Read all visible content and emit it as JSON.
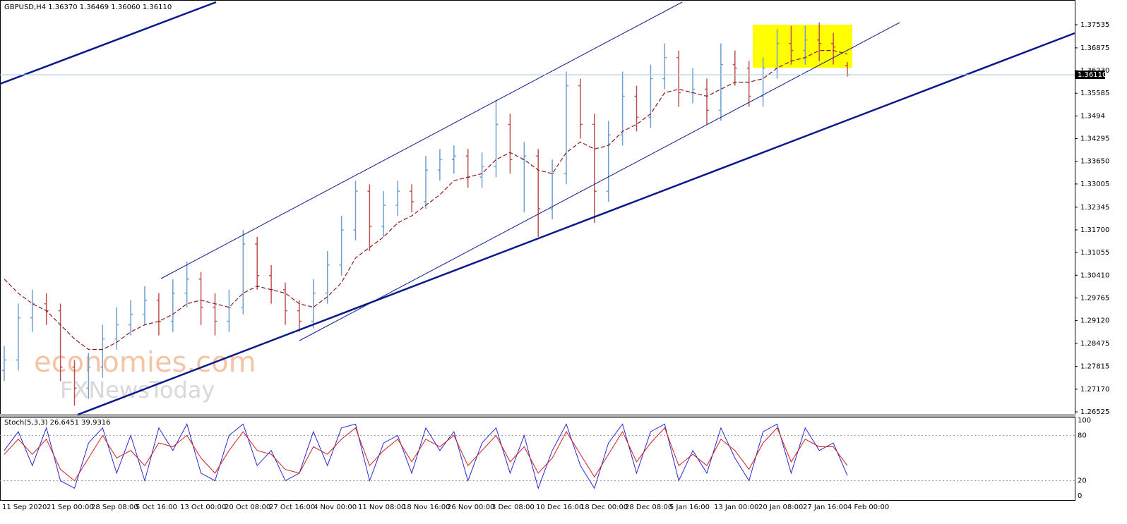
{
  "chart_data": {
    "type": "ohlc",
    "symbol_label": "GBPUSD,H4  1.36370 1.36469 1.36060 1.36110",
    "up_color": "#6f9fcf",
    "down_color": "#c05050",
    "ohlc": {
      "open": [
        1.277,
        1.28,
        1.292,
        1.296,
        1.294,
        1.278,
        1.272,
        1.278,
        1.286,
        1.29,
        1.293,
        1.297,
        1.291,
        1.299,
        1.303,
        1.295,
        1.291,
        1.295,
        1.313,
        1.304,
        1.3,
        1.294,
        1.291,
        1.299,
        1.307,
        1.317,
        1.328,
        1.318,
        1.324,
        1.328,
        1.325,
        1.334,
        1.337,
        1.338,
        1.332,
        1.335,
        1.347,
        1.337,
        1.338,
        1.323,
        1.333,
        1.358,
        1.347,
        1.328,
        1.344,
        1.355,
        1.349,
        1.36,
        1.366,
        1.356,
        1.357,
        1.351,
        1.364,
        1.363,
        1.355,
        1.363,
        1.37,
        1.368,
        1.371,
        1.37,
        1.3637
      ],
      "high": [
        1.284,
        1.296,
        1.3,
        1.299,
        1.296,
        1.28,
        1.282,
        1.29,
        1.295,
        1.297,
        1.301,
        1.299,
        1.303,
        1.308,
        1.305,
        1.299,
        1.3,
        1.317,
        1.315,
        1.307,
        1.302,
        1.297,
        1.303,
        1.311,
        1.321,
        1.331,
        1.33,
        1.328,
        1.331,
        1.33,
        1.338,
        1.34,
        1.341,
        1.34,
        1.339,
        1.354,
        1.35,
        1.342,
        1.34,
        1.337,
        1.362,
        1.36,
        1.35,
        1.348,
        1.362,
        1.358,
        1.364,
        1.37,
        1.368,
        1.363,
        1.36,
        1.37,
        1.368,
        1.365,
        1.366,
        1.374,
        1.375,
        1.375,
        1.376,
        1.373,
        1.36469
      ],
      "low": [
        1.274,
        1.277,
        1.288,
        1.29,
        1.274,
        1.267,
        1.269,
        1.275,
        1.283,
        1.287,
        1.29,
        1.287,
        1.288,
        1.295,
        1.29,
        1.287,
        1.288,
        1.293,
        1.3,
        1.296,
        1.29,
        1.288,
        1.289,
        1.296,
        1.304,
        1.314,
        1.311,
        1.315,
        1.321,
        1.322,
        1.323,
        1.331,
        1.333,
        1.329,
        1.329,
        1.332,
        1.333,
        1.322,
        1.315,
        1.32,
        1.33,
        1.343,
        1.319,
        1.325,
        1.341,
        1.345,
        1.346,
        1.357,
        1.352,
        1.353,
        1.347,
        1.348,
        1.358,
        1.352,
        1.352,
        1.36,
        1.364,
        1.364,
        1.365,
        1.364,
        1.3606
      ],
      "close": [
        1.28,
        1.292,
        1.296,
        1.294,
        1.278,
        1.272,
        1.278,
        1.286,
        1.29,
        1.293,
        1.297,
        1.291,
        1.299,
        1.303,
        1.295,
        1.291,
        1.295,
        1.313,
        1.304,
        1.3,
        1.294,
        1.291,
        1.299,
        1.307,
        1.317,
        1.328,
        1.318,
        1.324,
        1.328,
        1.325,
        1.334,
        1.337,
        1.338,
        1.332,
        1.335,
        1.347,
        1.337,
        1.338,
        1.323,
        1.333,
        1.358,
        1.347,
        1.328,
        1.344,
        1.355,
        1.349,
        1.36,
        1.366,
        1.356,
        1.357,
        1.351,
        1.364,
        1.363,
        1.355,
        1.363,
        1.37,
        1.368,
        1.371,
        1.37,
        1.369,
        1.3611
      ]
    },
    "ma": {
      "color": "#8b1a1a",
      "values": [
        1.303,
        1.299,
        1.296,
        1.294,
        1.29,
        1.286,
        1.283,
        1.283,
        1.285,
        1.288,
        1.29,
        1.291,
        1.293,
        1.296,
        1.297,
        1.296,
        1.295,
        1.299,
        1.301,
        1.3,
        1.299,
        1.296,
        1.295,
        1.298,
        1.302,
        1.309,
        1.312,
        1.315,
        1.319,
        1.321,
        1.324,
        1.327,
        1.331,
        1.332,
        1.333,
        1.337,
        1.339,
        1.337,
        1.334,
        1.333,
        1.339,
        1.342,
        1.34,
        1.341,
        1.345,
        1.347,
        1.35,
        1.356,
        1.357,
        1.356,
        1.355,
        1.357,
        1.359,
        1.359,
        1.36,
        1.363,
        1.365,
        1.366,
        1.368,
        1.368,
        1.367
      ]
    },
    "ylim": [
      1.26445,
      1.38237
    ],
    "yticks": [
      1.37535,
      1.36875,
      {
        "value": 1.3623,
        "label": "1.36230"
      },
      1.35585,
      1.3494,
      1.34295,
      {
        "value": 1.3365,
        "label": "1.33650"
      },
      1.33005,
      1.32345,
      {
        "value": 1.317,
        "label": "1.31700"
      },
      1.31055,
      {
        "value": 1.3041,
        "label": "1.30410"
      },
      1.29765,
      {
        "value": 1.2912,
        "label": "1.29120"
      },
      1.28475,
      1.27815,
      {
        "value": 1.2717,
        "label": "1.27170"
      },
      1.26525
    ],
    "current_price": {
      "value": 1.3611,
      "label": "1.36110"
    },
    "x_labels": [
      "11 Sep 2020",
      "21 Sep 00:00",
      "28 Sep 08:00",
      "5 Oct 16:00",
      "13 Oct 00:00",
      "20 Oct 08:00",
      "27 Oct 16:00",
      "4 Nov 00:00",
      "11 Nov 08:00",
      "18 Nov 16:00",
      "26 Nov 00:00",
      "3 Dec 08:00",
      "10 Dec 16:00",
      "18 Dec 00:00",
      "28 Dec 08:00",
      "5 Jan 16:00",
      "13 Jan 00:00",
      "20 Jan 08:00",
      "27 Jan 16:00",
      "4 Feb 00:00"
    ],
    "watermark": [
      "economies.com",
      "FXNewsToday"
    ],
    "indicator": {
      "type": "line",
      "title": "Stoch(5,3,3) 26.6451 39.9316",
      "ylim": [
        0,
        100
      ],
      "yticks": [
        0,
        20,
        80,
        100
      ],
      "series": [
        {
          "color": "#2a2ad0",
          "values": [
            60,
            85,
            40,
            90,
            20,
            10,
            70,
            90,
            30,
            80,
            20,
            90,
            60,
            95,
            30,
            20,
            80,
            95,
            40,
            60,
            20,
            30,
            85,
            40,
            90,
            95,
            20,
            70,
            80,
            30,
            90,
            60,
            85,
            20,
            70,
            90,
            30,
            80,
            10,
            60,
            95,
            40,
            10,
            70,
            95,
            30,
            85,
            95,
            20,
            60,
            30,
            90,
            50,
            20,
            85,
            95,
            30,
            90,
            60,
            70,
            26.6451
          ]
        },
        {
          "color": "#d02020",
          "values": [
            55,
            75,
            55,
            75,
            35,
            20,
            50,
            80,
            50,
            60,
            40,
            70,
            65,
            80,
            50,
            30,
            60,
            85,
            60,
            55,
            35,
            30,
            65,
            55,
            75,
            90,
            40,
            60,
            75,
            45,
            75,
            65,
            80,
            40,
            60,
            80,
            45,
            65,
            30,
            50,
            85,
            55,
            25,
            55,
            85,
            45,
            70,
            90,
            40,
            55,
            40,
            75,
            60,
            35,
            70,
            90,
            45,
            75,
            65,
            65,
            39.9316
          ]
        }
      ]
    }
  }
}
